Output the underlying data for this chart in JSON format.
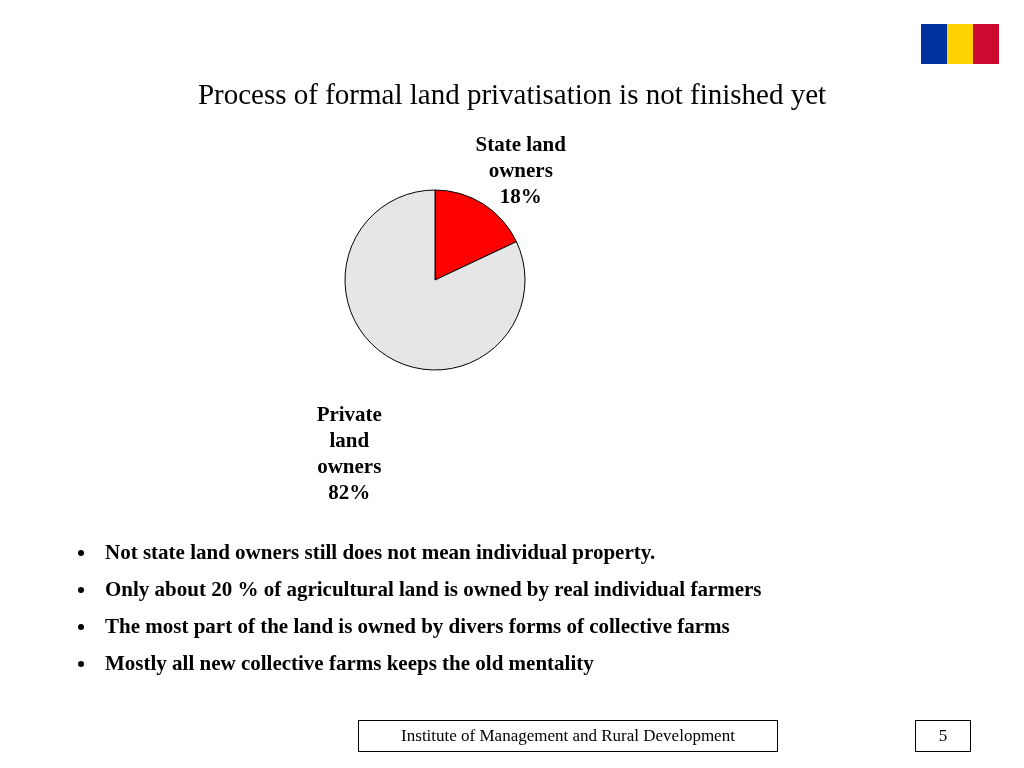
{
  "chart_data": {
    "type": "pie",
    "title": "Process of formal land privatisation is not finished yet",
    "categories": [
      "State land owners",
      "Private land owners"
    ],
    "values": [
      18,
      82
    ],
    "colors": [
      "#ff0000",
      "#e6e6e6"
    ],
    "value_labels": [
      "18%",
      "82%"
    ],
    "annotations": [
      "Not state land owners still does not mean individual property.",
      "Only about 20 % of agricultural land is owned by real individual farmers",
      "The most part of the land is owned by divers forms of collective farms",
      "Mostly all new collective farms keeps the old mentality",
      "Institute of Management and Rural Development",
      "5"
    ]
  }
}
